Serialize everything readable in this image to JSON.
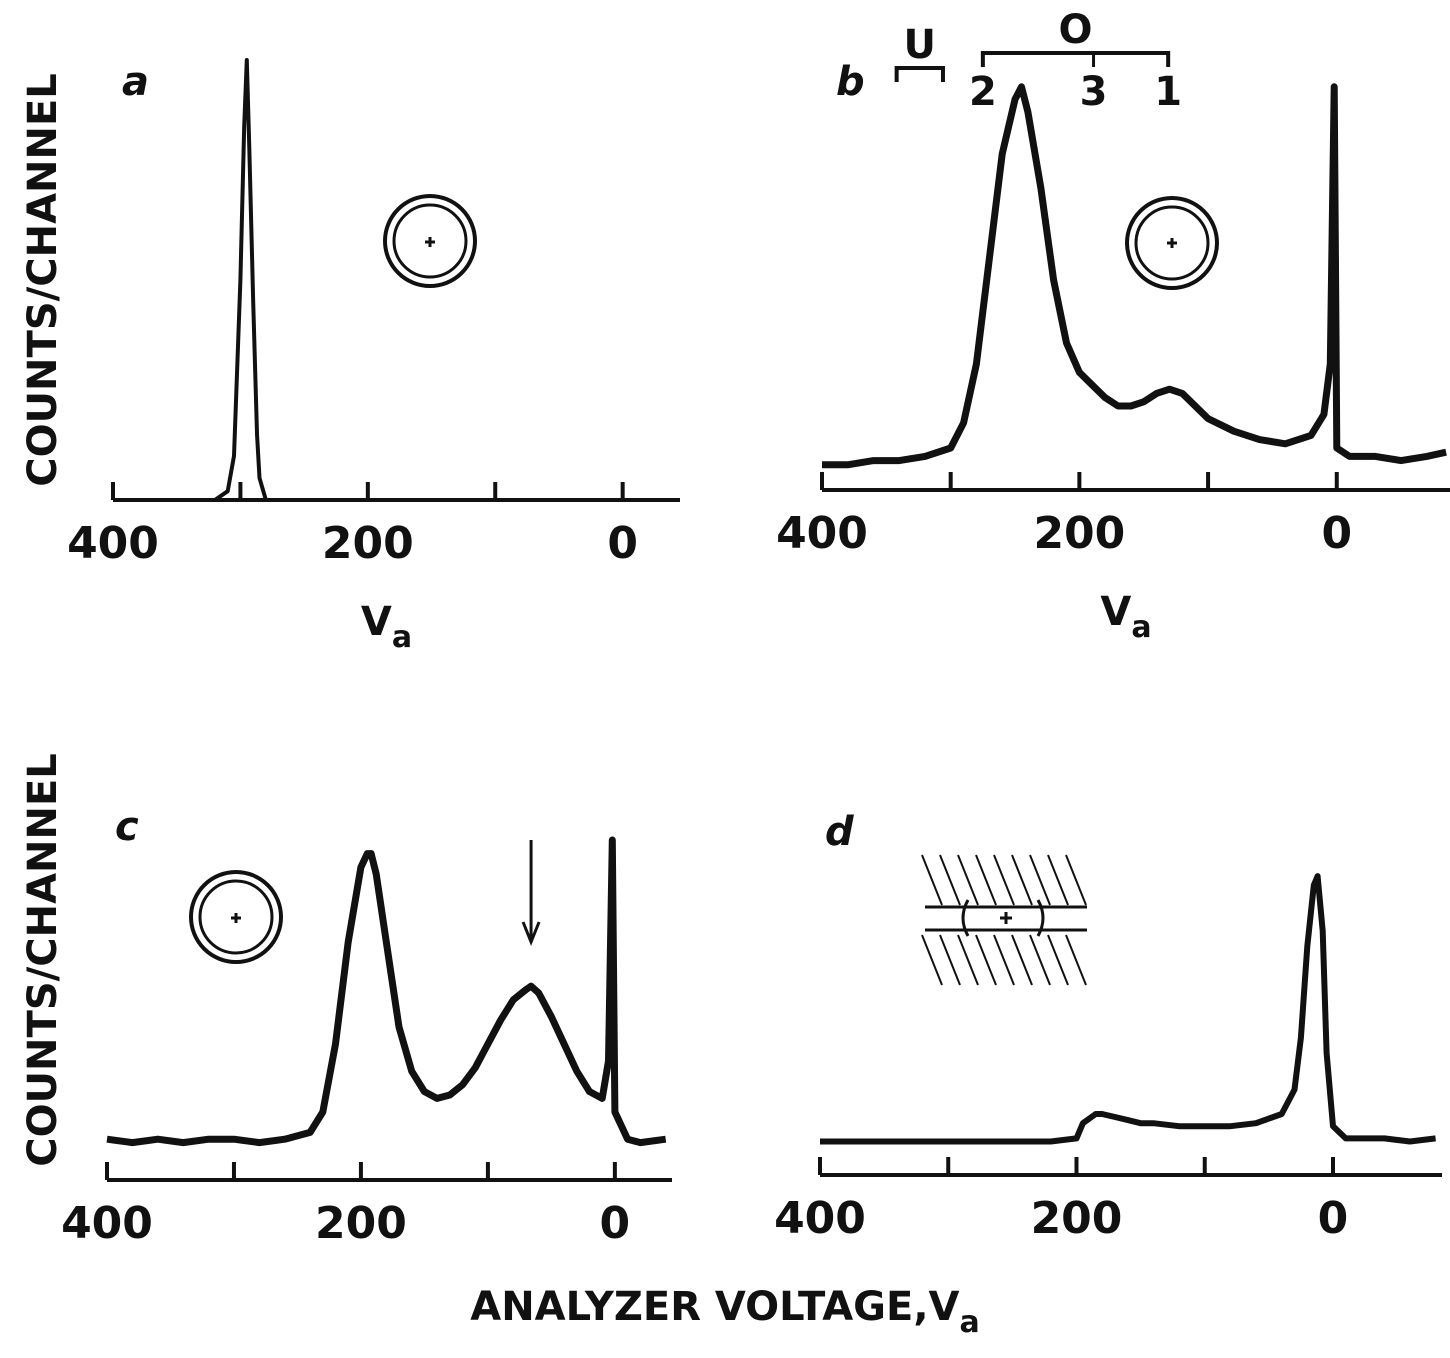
{
  "figure": {
    "xlabel": {
      "text": "ANALYZER VOLTAGE,V",
      "subscript": "a"
    }
  },
  "chart_data": [
    {
      "type": "line",
      "panel": "a",
      "ylabel": "COUNTS/CHANNEL",
      "xlabel": {
        "text": "V",
        "subscript": "a"
      },
      "xlim": [
        400,
        -45
      ],
      "ylim": [
        0,
        100
      ],
      "xticks": [
        400,
        200,
        0
      ],
      "minor_xticks": [
        300,
        100
      ],
      "color": "#111111",
      "x": [
        395,
        380,
        350,
        320,
        310,
        305,
        300,
        297,
        295,
        293,
        290,
        287,
        285,
        280,
        270,
        250,
        200,
        150,
        100,
        50,
        0,
        -40
      ],
      "values": [
        0,
        0,
        0,
        0,
        2,
        10,
        50,
        85,
        100,
        80,
        45,
        15,
        5,
        0,
        0,
        0,
        0,
        0,
        0,
        0,
        0,
        0
      ]
    },
    {
      "type": "line",
      "panel": "b",
      "xlabel": {
        "text": "V",
        "subscript": "a"
      },
      "xlim": [
        400,
        -88
      ],
      "ylim": [
        0,
        100
      ],
      "xticks": [
        400,
        200,
        0
      ],
      "minor_xticks": [
        300,
        100
      ],
      "color": "#111111",
      "x": [
        400,
        380,
        360,
        340,
        320,
        300,
        290,
        280,
        270,
        260,
        250,
        245,
        240,
        230,
        220,
        210,
        200,
        190,
        180,
        170,
        160,
        150,
        140,
        130,
        120,
        110,
        100,
        80,
        60,
        40,
        20,
        10,
        5,
        2,
        0,
        -10,
        -30,
        -50,
        -70,
        -85
      ],
      "values": [
        6,
        6,
        7,
        7,
        8,
        10,
        16,
        30,
        55,
        80,
        93,
        96,
        90,
        72,
        50,
        35,
        28,
        25,
        22,
        20,
        20,
        21,
        23,
        24,
        23,
        20,
        17,
        14,
        12,
        11,
        13,
        18,
        30,
        96,
        10,
        8,
        8,
        7,
        8,
        9
      ],
      "brackets": [
        {
          "label": "U",
          "from": 342,
          "to": 306
        },
        {
          "label": "O",
          "from": 275,
          "to": 131
        }
      ],
      "marker_labels": [
        {
          "label": "2",
          "x": 275
        },
        {
          "label": "3",
          "x": 189
        },
        {
          "label": "1",
          "x": 131
        }
      ]
    },
    {
      "type": "line",
      "panel": "c",
      "ylabel": "COUNTS/CHANNEL",
      "xlim": [
        400,
        -45
      ],
      "ylim": [
        0,
        100
      ],
      "xticks": [
        400,
        200,
        0
      ],
      "minor_xticks": [
        300,
        100
      ],
      "color": "#111111",
      "x": [
        400,
        380,
        360,
        340,
        320,
        300,
        280,
        260,
        240,
        230,
        220,
        210,
        200,
        195,
        192,
        188,
        180,
        170,
        160,
        150,
        140,
        130,
        120,
        110,
        100,
        90,
        80,
        70,
        66,
        60,
        50,
        40,
        30,
        20,
        10,
        5,
        2,
        0,
        -10,
        -20,
        -40
      ],
      "values": [
        12,
        11,
        12,
        11,
        12,
        12,
        11,
        12,
        14,
        20,
        40,
        70,
        92,
        96,
        96,
        90,
        70,
        45,
        32,
        26,
        24,
        25,
        28,
        33,
        40,
        47,
        53,
        56,
        57,
        55,
        48,
        40,
        32,
        26,
        24,
        35,
        100,
        20,
        12,
        11,
        12
      ],
      "arrow_x": 66
    },
    {
      "type": "line",
      "panel": "d",
      "xlim": [
        400,
        -85
      ],
      "ylim": [
        0,
        100
      ],
      "xticks": [
        400,
        200,
        0
      ],
      "minor_xticks": [
        300,
        100
      ],
      "color": "#111111",
      "x": [
        400,
        350,
        300,
        250,
        220,
        200,
        195,
        185,
        180,
        170,
        160,
        150,
        140,
        120,
        100,
        80,
        60,
        40,
        30,
        25,
        20,
        15,
        12,
        8,
        5,
        0,
        -10,
        -20,
        -40,
        -60,
        -80
      ],
      "values": [
        11,
        11,
        11,
        11,
        11,
        12,
        17,
        20,
        20,
        19,
        18,
        17,
        17,
        16,
        16,
        16,
        17,
        20,
        28,
        45,
        75,
        95,
        98,
        80,
        40,
        16,
        12,
        12,
        12,
        11,
        12
      ]
    }
  ]
}
